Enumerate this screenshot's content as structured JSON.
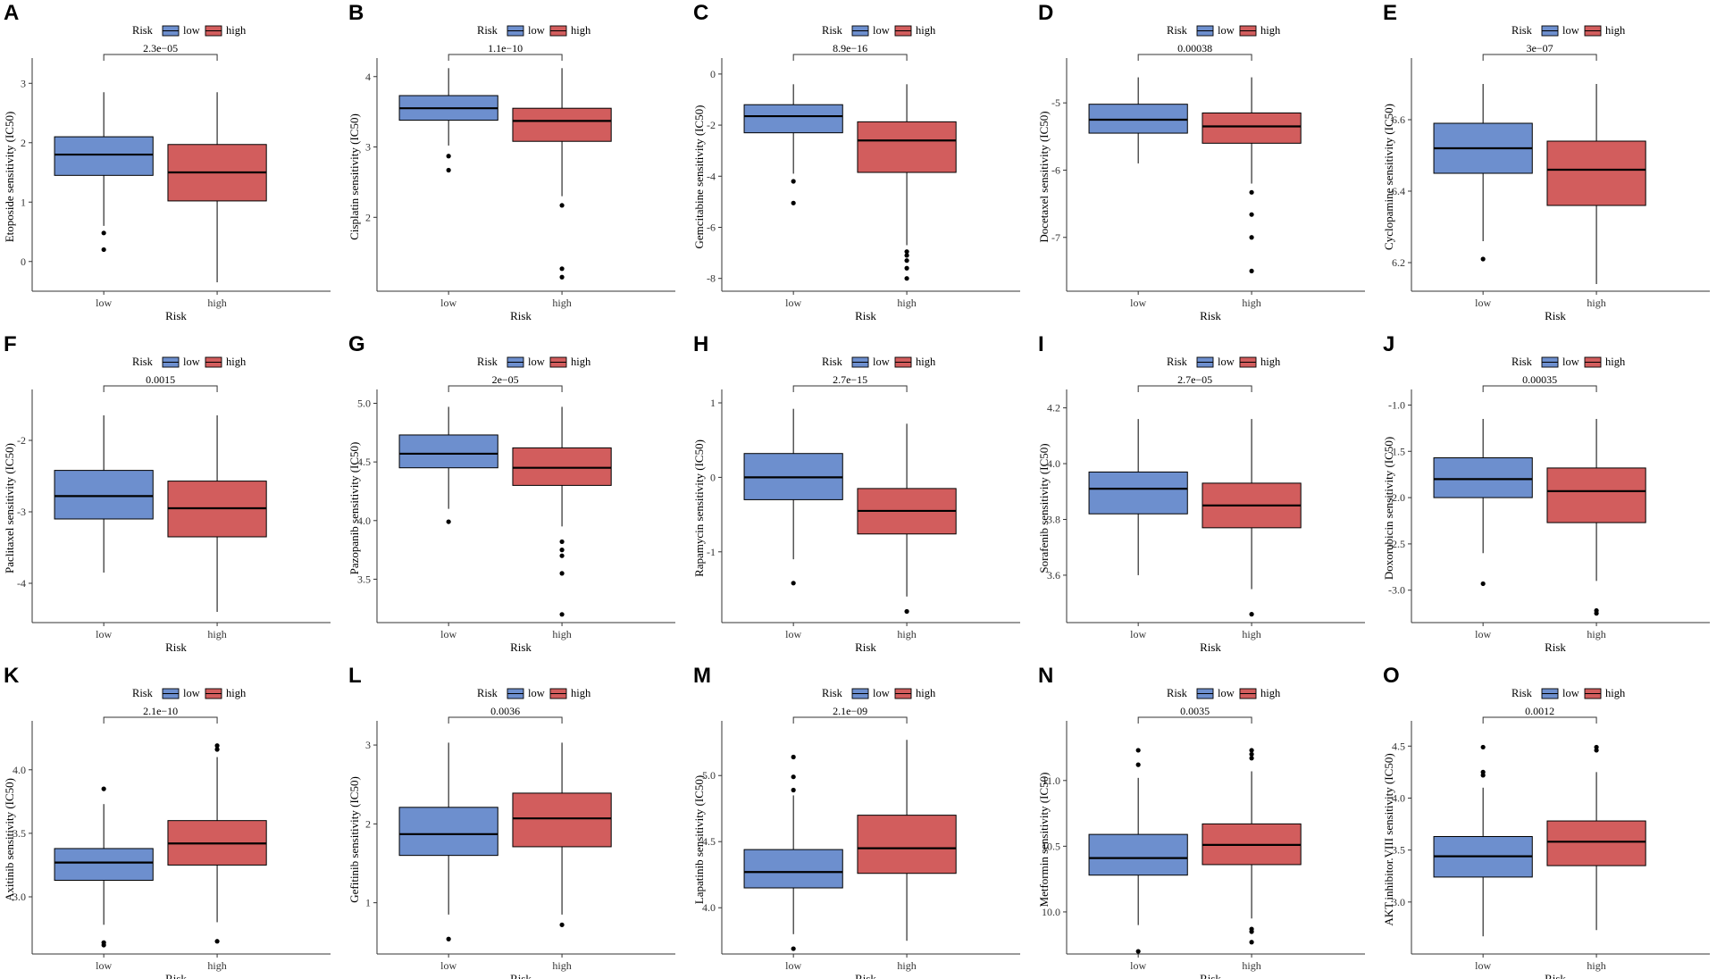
{
  "colors": {
    "low": "#6d8fce",
    "high": "#d25d5d",
    "line": "#000000",
    "axis": "#333333"
  },
  "legend": {
    "title": "Risk",
    "low": "low",
    "high": "high"
  },
  "x_axis_title": "Risk",
  "chart_data": [
    {
      "panel": "A",
      "type": "box",
      "ylabel": "Etoposide sensitivity (IC50)",
      "ylim": [
        -0.5,
        3.35
      ],
      "yticks": [
        0,
        1,
        2,
        3
      ],
      "categories": [
        "low",
        "high"
      ],
      "pvalue": "2.3e−05",
      "low": {
        "min": 0.6,
        "q1": 1.45,
        "median": 1.8,
        "q3": 2.1,
        "max": 2.85,
        "outliers": [
          0.48,
          0.2
        ]
      },
      "high": {
        "min": -0.35,
        "q1": 1.02,
        "median": 1.5,
        "q3": 1.97,
        "max": 2.85,
        "outliers": []
      }
    },
    {
      "panel": "B",
      "type": "box",
      "ylabel": "Cisplatin sensitivity (IC50)",
      "ylim": [
        0.95,
        4.2
      ],
      "yticks": [
        2,
        3,
        4
      ],
      "categories": [
        "low",
        "high"
      ],
      "pvalue": "1.1e−10",
      "low": {
        "min": 3.02,
        "q1": 3.38,
        "median": 3.55,
        "q3": 3.73,
        "max": 4.12,
        "outliers": [
          2.87,
          2.67
        ]
      },
      "high": {
        "min": 2.3,
        "q1": 3.08,
        "median": 3.37,
        "q3": 3.55,
        "max": 4.12,
        "outliers": [
          2.17,
          1.27,
          1.15
        ]
      }
    },
    {
      "panel": "C",
      "type": "box",
      "ylabel": "Gemcitabine sensitivity (IC50)",
      "ylim": [
        -8.5,
        0.45
      ],
      "yticks": [
        -8,
        -6,
        -4,
        -2,
        0
      ],
      "categories": [
        "low",
        "high"
      ],
      "pvalue": "8.9e−16",
      "low": {
        "min": -3.9,
        "q1": -2.3,
        "median": -1.65,
        "q3": -1.2,
        "max": -0.4,
        "outliers": [
          -4.2,
          -5.05
        ]
      },
      "high": {
        "min": -6.7,
        "q1": -3.85,
        "median": -2.6,
        "q3": -1.87,
        "max": -0.4,
        "outliers": [
          -6.95,
          -7.1,
          -7.3,
          -7.6,
          -8.0
        ]
      }
    },
    {
      "panel": "D",
      "type": "box",
      "ylabel": "Docetaxel sensitivity (IC50)",
      "ylim": [
        -7.8,
        -4.4
      ],
      "yticks": [
        -7,
        -6,
        -5
      ],
      "categories": [
        "low",
        "high"
      ],
      "pvalue": "0.00038",
      "low": {
        "min": -5.9,
        "q1": -5.45,
        "median": -5.25,
        "q3": -5.02,
        "max": -4.62,
        "outliers": []
      },
      "high": {
        "min": -6.2,
        "q1": -5.6,
        "median": -5.35,
        "q3": -5.15,
        "max": -4.62,
        "outliers": [
          -6.33,
          -6.66,
          -7.0,
          -7.5
        ]
      }
    },
    {
      "panel": "E",
      "type": "box",
      "ylabel": "Cyclopamine sensitivity (IC50)",
      "ylim": [
        6.12,
        6.76
      ],
      "yticks": [
        6.2,
        6.4,
        6.6
      ],
      "categories": [
        "low",
        "high"
      ],
      "pvalue": "3e−07",
      "low": {
        "min": 6.26,
        "q1": 6.45,
        "median": 6.52,
        "q3": 6.59,
        "max": 6.7,
        "outliers": [
          6.21
        ]
      },
      "high": {
        "min": 6.14,
        "q1": 6.36,
        "median": 6.46,
        "q3": 6.54,
        "max": 6.7,
        "outliers": []
      }
    },
    {
      "panel": "F",
      "type": "box",
      "ylabel": "Paclitaxel sensitivity (IC50)",
      "ylim": [
        -4.55,
        -1.35
      ],
      "yticks": [
        -4,
        -3,
        -2
      ],
      "categories": [
        "low",
        "high"
      ],
      "pvalue": "0.0015",
      "low": {
        "min": -3.85,
        "q1": -3.1,
        "median": -2.78,
        "q3": -2.42,
        "max": -1.65,
        "outliers": []
      },
      "high": {
        "min": -4.4,
        "q1": -3.35,
        "median": -2.95,
        "q3": -2.57,
        "max": -1.65,
        "outliers": []
      }
    },
    {
      "panel": "G",
      "type": "box",
      "ylabel": "Pazopanib sensitivity (IC50)",
      "ylim": [
        3.13,
        5.08
      ],
      "yticks": [
        3.5,
        4.0,
        4.5,
        5.0
      ],
      "ytick_labels": [
        "3.5",
        "4.0",
        "4.5",
        "5.0"
      ],
      "categories": [
        "low",
        "high"
      ],
      "pvalue": "2e−05",
      "low": {
        "min": 4.1,
        "q1": 4.45,
        "median": 4.57,
        "q3": 4.73,
        "max": 4.97,
        "outliers": [
          3.99
        ]
      },
      "high": {
        "min": 3.95,
        "q1": 4.3,
        "median": 4.45,
        "q3": 4.62,
        "max": 4.97,
        "outliers": [
          3.82,
          3.75,
          3.7,
          3.55,
          3.2
        ]
      }
    },
    {
      "panel": "H",
      "type": "box",
      "ylabel": "Rapamycin sensitivity (IC50)",
      "ylim": [
        -1.95,
        1.12
      ],
      "yticks": [
        -1,
        0,
        1
      ],
      "categories": [
        "low",
        "high"
      ],
      "pvalue": "2.7e−15",
      "low": {
        "min": -1.1,
        "q1": -0.3,
        "median": 0.0,
        "q3": 0.32,
        "max": 0.92,
        "outliers": [
          -1.42
        ]
      },
      "high": {
        "min": -1.6,
        "q1": -0.76,
        "median": -0.45,
        "q3": -0.15,
        "max": 0.72,
        "outliers": [
          -1.8
        ]
      }
    },
    {
      "panel": "I",
      "type": "box",
      "ylabel": "Sorafenib sensitivity (IC50)",
      "ylim": [
        3.43,
        4.25
      ],
      "yticks": [
        3.6,
        3.8,
        4.0,
        4.2
      ],
      "ytick_labels": [
        "3.6",
        "3.8",
        "4.0",
        "4.2"
      ],
      "categories": [
        "low",
        "high"
      ],
      "pvalue": "2.7e−05",
      "low": {
        "min": 3.6,
        "q1": 3.82,
        "median": 3.91,
        "q3": 3.97,
        "max": 4.16,
        "outliers": []
      },
      "high": {
        "min": 3.55,
        "q1": 3.77,
        "median": 3.85,
        "q3": 3.93,
        "max": 4.16,
        "outliers": [
          3.46
        ]
      }
    },
    {
      "panel": "J",
      "type": "box",
      "ylabel": "Doxorubicin sensitivity (IC50)",
      "ylim": [
        -3.35,
        -0.88
      ],
      "yticks": [
        -3.0,
        -2.5,
        -2.0,
        -1.5,
        -1.0
      ],
      "ytick_labels": [
        "-3.0",
        "-2.5",
        "-2.0",
        "-1.5",
        "-1.0"
      ],
      "categories": [
        "low",
        "high"
      ],
      "pvalue": "0.00035",
      "low": {
        "min": -2.6,
        "q1": -2.0,
        "median": -1.8,
        "q3": -1.57,
        "max": -1.15,
        "outliers": [
          -2.93
        ]
      },
      "high": {
        "min": -2.9,
        "q1": -2.27,
        "median": -1.93,
        "q3": -1.68,
        "max": -1.15,
        "outliers": [
          -3.22,
          -3.25
        ]
      }
    },
    {
      "panel": "K",
      "type": "box",
      "ylabel": "Axitinib sensitivity (IC50)",
      "ylim": [
        2.55,
        4.35
      ],
      "yticks": [
        3.0,
        3.5,
        4.0
      ],
      "ytick_labels": [
        "3.0",
        "3.5",
        "4.0"
      ],
      "categories": [
        "low",
        "high"
      ],
      "pvalue": "2.1e−10",
      "low": {
        "min": 2.78,
        "q1": 3.13,
        "median": 3.27,
        "q3": 3.38,
        "max": 3.73,
        "outliers": [
          3.85,
          2.64,
          2.62
        ]
      },
      "high": {
        "min": 2.8,
        "q1": 3.25,
        "median": 3.42,
        "q3": 3.6,
        "max": 4.1,
        "outliers": [
          4.19,
          4.16,
          2.65
        ]
      }
    },
    {
      "panel": "L",
      "type": "box",
      "ylabel": "Gefitinib sensitivity (IC50)",
      "ylim": [
        0.35,
        3.25
      ],
      "yticks": [
        1,
        2,
        3
      ],
      "categories": [
        "low",
        "high"
      ],
      "pvalue": "0.0036",
      "low": {
        "min": 0.85,
        "q1": 1.6,
        "median": 1.87,
        "q3": 2.21,
        "max": 3.03,
        "outliers": [
          0.54
        ]
      },
      "high": {
        "min": 0.85,
        "q1": 1.71,
        "median": 2.07,
        "q3": 2.39,
        "max": 3.03,
        "outliers": [
          0.72
        ]
      }
    },
    {
      "panel": "M",
      "type": "box",
      "ylabel": "Lapatinib sensitivity (IC50)",
      "ylim": [
        3.65,
        5.38
      ],
      "yticks": [
        4.0,
        4.5,
        5.0
      ],
      "ytick_labels": [
        "4.0",
        "4.5",
        "5.0"
      ],
      "categories": [
        "low",
        "high"
      ],
      "pvalue": "2.1e−09",
      "low": {
        "min": 3.8,
        "q1": 4.15,
        "median": 4.27,
        "q3": 4.44,
        "max": 4.85,
        "outliers": [
          5.14,
          4.99,
          4.89,
          3.69
        ]
      },
      "high": {
        "min": 3.75,
        "q1": 4.26,
        "median": 4.45,
        "q3": 4.7,
        "max": 5.27,
        "outliers": []
      }
    },
    {
      "panel": "N",
      "type": "box",
      "ylabel": "Metformin sensitivity (IC50)",
      "ylim": [
        9.68,
        11.42
      ],
      "yticks": [
        10.0,
        10.5,
        11.0
      ],
      "ytick_labels": [
        "10.0",
        "10.5",
        "11.0"
      ],
      "categories": [
        "low",
        "high"
      ],
      "pvalue": "0.0035",
      "low": {
        "min": 9.9,
        "q1": 10.28,
        "median": 10.41,
        "q3": 10.59,
        "max": 11.02,
        "outliers": [
          11.23,
          11.12,
          9.7
        ]
      },
      "high": {
        "min": 9.95,
        "q1": 10.36,
        "median": 10.51,
        "q3": 10.67,
        "max": 11.07,
        "outliers": [
          11.23,
          11.2,
          11.17,
          9.87,
          9.85,
          9.77
        ]
      }
    },
    {
      "panel": "O",
      "type": "box",
      "ylabel": "AKT.inhibitor.VIII sensitivity (IC50)",
      "ylim": [
        2.5,
        4.7
      ],
      "yticks": [
        3.0,
        3.5,
        4.0,
        4.5
      ],
      "ytick_labels": [
        "3.0",
        "3.5",
        "4.0",
        "4.5"
      ],
      "categories": [
        "low",
        "high"
      ],
      "pvalue": "0.0012",
      "low": {
        "min": 2.67,
        "q1": 3.24,
        "median": 3.44,
        "q3": 3.63,
        "max": 4.1,
        "outliers": [
          4.49,
          4.25,
          4.22
        ]
      },
      "high": {
        "min": 2.73,
        "q1": 3.35,
        "median": 3.58,
        "q3": 3.78,
        "max": 4.25,
        "outliers": [
          4.49,
          4.46
        ]
      }
    }
  ]
}
